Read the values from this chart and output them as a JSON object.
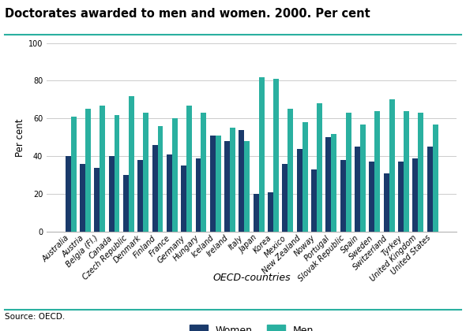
{
  "title": "Doctorates awarded to men and women. 2000. Per cent",
  "ylabel": "Per cent",
  "xlabel": "OECD-countries",
  "source": "Source: OECD.",
  "ylim": [
    0,
    100
  ],
  "yticks": [
    0,
    20,
    40,
    60,
    80,
    100
  ],
  "countries": [
    "Australia",
    "Austria",
    "Belgia (Fl.)",
    "Canada",
    "Czech Republic",
    "Denmark",
    "Finland",
    "France",
    "Germany",
    "Hungary",
    "Iceland",
    "Ireland",
    "Italy",
    "Japan",
    "Korea",
    "Mexico",
    "New Zealand",
    "Noway",
    "Portugal",
    "Slovak Republic",
    "Spain",
    "Sweden",
    "Switzerland",
    "Tyrkey",
    "United Kingdom",
    "United States"
  ],
  "women": [
    40,
    36,
    34,
    40,
    30,
    38,
    46,
    41,
    35,
    39,
    51,
    48,
    54,
    20,
    21,
    36,
    44,
    33,
    50,
    38,
    45,
    37,
    31,
    37,
    39,
    45
  ],
  "men": [
    61,
    65,
    67,
    62,
    72,
    63,
    56,
    60,
    67,
    63,
    51,
    55,
    48,
    82,
    81,
    65,
    58,
    68,
    52,
    63,
    57,
    64,
    70,
    64,
    63,
    57
  ],
  "color_women": "#1a3a6b",
  "color_men": "#2ab0a0",
  "background_color": "#ffffff",
  "grid_color": "#cccccc",
  "title_line_color": "#2ab0a0",
  "source_line_color": "#2ab0a0",
  "legend_fontsize": 9,
  "title_fontsize": 10.5,
  "ylabel_fontsize": 8.5,
  "xlabel_fontsize": 9,
  "tick_fontsize": 7,
  "source_fontsize": 7.5
}
